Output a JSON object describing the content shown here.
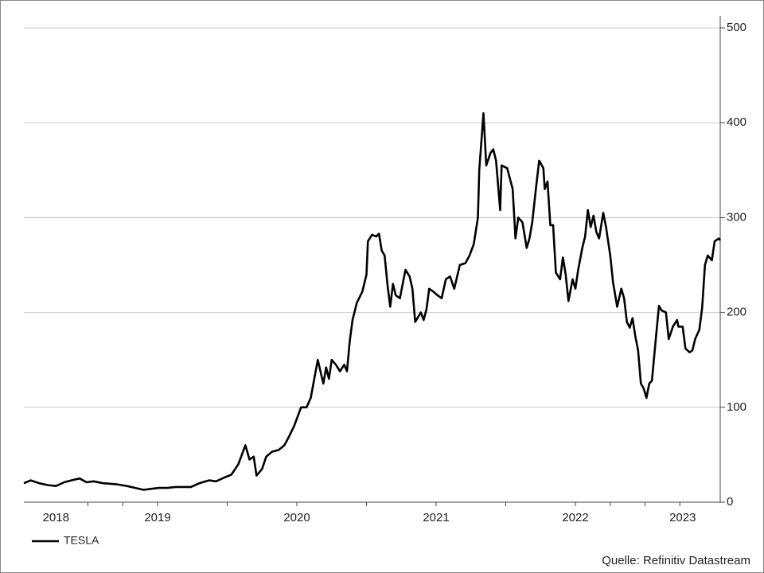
{
  "chart_data": {
    "type": "line",
    "source": "Quelle: Refinitiv Datastream",
    "xlim": [
      2018.54,
      2023.54
    ],
    "ylim": [
      0,
      500
    ],
    "yticks": [
      0,
      100,
      200,
      300,
      400,
      500
    ],
    "xticks": [
      {
        "value": 2018.77,
        "label": "2018"
      },
      {
        "value": 2019.5,
        "label": "2019"
      },
      {
        "value": 2020.5,
        "label": "2020"
      },
      {
        "value": 2021.5,
        "label": "2021"
      },
      {
        "value": 2022.5,
        "label": "2022"
      },
      {
        "value": 2023.27,
        "label": "2023"
      }
    ],
    "minor_xticks": [
      2019,
      2019.25,
      2019.5,
      2020,
      2020.5,
      2021,
      2021.5,
      2022,
      2022.5,
      2022.75,
      2023,
      2023.25
    ],
    "grid": true,
    "legend": "bottom-left",
    "x": [
      2018.54,
      2018.59,
      2018.65,
      2018.71,
      2018.77,
      2018.83,
      2018.88,
      2018.94,
      2018.99,
      2019.04,
      2019.11,
      2019.2,
      2019.28,
      2019.34,
      2019.4,
      2019.45,
      2019.51,
      2019.57,
      2019.63,
      2019.74,
      2019.8,
      2019.87,
      2019.92,
      2019.98,
      2020.03,
      2020.08,
      2020.13,
      2020.16,
      2020.19,
      2020.21,
      2020.25,
      2020.28,
      2020.32,
      2020.37,
      2020.41,
      2020.44,
      2020.48,
      2020.53,
      2020.57,
      2020.6,
      2020.65,
      2020.69,
      2020.71,
      2020.73,
      2020.75,
      2020.78,
      2020.81,
      2020.84,
      2020.86,
      2020.88,
      2020.9,
      2020.93,
      2020.97,
      2021.0,
      2021.01,
      2021.04,
      2021.07,
      2021.09,
      2021.11,
      2021.13,
      2021.15,
      2021.17,
      2021.19,
      2021.21,
      2021.24,
      2021.28,
      2021.31,
      2021.33,
      2021.35,
      2021.39,
      2021.41,
      2021.43,
      2021.45,
      2021.48,
      2021.51,
      2021.54,
      2021.57,
      2021.6,
      2021.63,
      2021.67,
      2021.71,
      2021.74,
      2021.77,
      2021.8,
      2021.81,
      2021.84,
      2021.86,
      2021.89,
      2021.91,
      2021.93,
      2021.96,
      2021.97,
      2022.01,
      2022.05,
      2022.07,
      2022.09,
      2022.12,
      2022.15,
      2022.17,
      2022.19,
      2022.22,
      2022.24,
      2022.27,
      2022.28,
      2022.3,
      2022.32,
      2022.34,
      2022.36,
      2022.39,
      2022.41,
      2022.43,
      2022.45,
      2022.48,
      2022.5,
      2022.52,
      2022.55,
      2022.57,
      2022.59,
      2022.61,
      2022.63,
      2022.65,
      2022.67,
      2022.7,
      2022.72,
      2022.75,
      2022.77,
      2022.8,
      2022.83,
      2022.85,
      2022.87,
      2022.89,
      2022.91,
      2022.93,
      2022.95,
      2022.97,
      2022.99,
      2023.01,
      2023.03,
      2023.05,
      2023.07,
      2023.1,
      2023.12,
      2023.15,
      2023.17,
      2023.2,
      2023.23,
      2023.24,
      2023.27,
      2023.29,
      2023.32,
      2023.34,
      2023.36,
      2023.39,
      2023.41,
      2023.43,
      2023.45,
      2023.48,
      2023.5,
      2023.53,
      2023.54
    ],
    "series": [
      {
        "name": "TESLA",
        "color": "#000000",
        "values": [
          20,
          23,
          20,
          18,
          17,
          21,
          23,
          25,
          21,
          22,
          20,
          19,
          17,
          15,
          13,
          14,
          15,
          15,
          16,
          16,
          20,
          23,
          22,
          26,
          29,
          40,
          60,
          45,
          48,
          28,
          35,
          48,
          53,
          55,
          60,
          68,
          80,
          100,
          100,
          110,
          150,
          125,
          142,
          130,
          150,
          145,
          138,
          145,
          138,
          170,
          192,
          210,
          222,
          240,
          275,
          282,
          280,
          283,
          265,
          260,
          230,
          206,
          230,
          218,
          215,
          245,
          238,
          225,
          190,
          200,
          192,
          203,
          225,
          222,
          218,
          215,
          235,
          238,
          225,
          250,
          252,
          260,
          272,
          300,
          350,
          410,
          355,
          368,
          372,
          360,
          308,
          355,
          352,
          330,
          278,
          300,
          295,
          268,
          278,
          295,
          335,
          360,
          352,
          330,
          338,
          292,
          292,
          242,
          235,
          258,
          240,
          212,
          235,
          225,
          245,
          268,
          280,
          308,
          290,
          302,
          285,
          278,
          305,
          290,
          260,
          232,
          206,
          225,
          215,
          190,
          184,
          194,
          175,
          160,
          125,
          120,
          110,
          125,
          128,
          160,
          207,
          202,
          200,
          172,
          185,
          192,
          185,
          185,
          162,
          158,
          160,
          172,
          182,
          205,
          250,
          260,
          255,
          275,
          278,
          276
        ]
      }
    ]
  }
}
